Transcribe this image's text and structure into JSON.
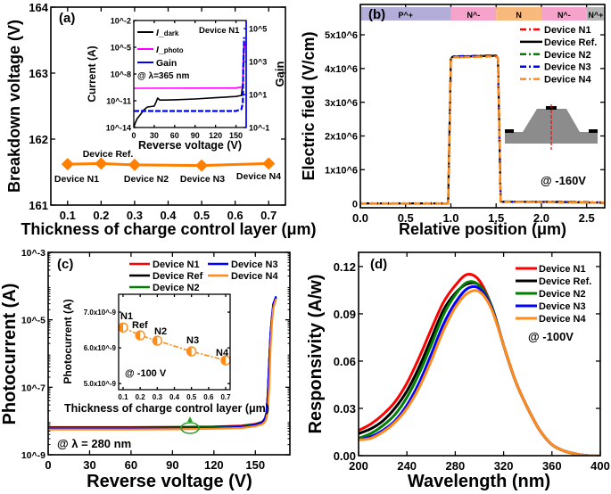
{
  "chart_data": [
    {
      "panel": "(a)",
      "type": "line",
      "xlabel": "Thickness of charge control layer (μm)",
      "ylabel": "Breakdown voltage (V)",
      "xlim": [
        0.05,
        0.75
      ],
      "ylim": [
        161,
        164
      ],
      "xticks": [
        0.1,
        0.2,
        0.3,
        0.4,
        0.5,
        0.6,
        0.7
      ],
      "xtick_labels": [
        "0.1",
        "0.2",
        "0.3",
        "0.4",
        "0.5",
        "0.6",
        "0.7"
      ],
      "yticks": [
        161,
        162,
        163,
        164
      ],
      "ytick_labels": [
        "161",
        "162",
        "163",
        "164"
      ],
      "color": "#ff7f00",
      "marker": "diamond",
      "x": [
        0.1,
        0.2,
        0.3,
        0.5,
        0.7
      ],
      "y": [
        161.62,
        161.63,
        161.61,
        161.6,
        161.63
      ],
      "point_labels": [
        "Device N1",
        "Device Ref.",
        "Device N2",
        "Device N3",
        "Device N4"
      ],
      "inset": {
        "type": "line",
        "xlabel": "Reverse voltage (V)",
        "ylabel": "Current (A)",
        "y2label": "Gain",
        "yscale": "log",
        "y2scale": "log",
        "xlim": [
          0,
          165
        ],
        "ylim": [
          1e-14,
          0.01
        ],
        "y2lim": [
          0.1,
          310000
        ],
        "xticks": [
          0,
          30,
          60,
          90,
          120,
          150
        ],
        "xtick_labels": [
          "0",
          "30",
          "60",
          "90",
          "120",
          "150"
        ],
        "yticks": [
          1e-14,
          1e-11,
          1e-08,
          1e-05,
          0.01
        ],
        "ytick_labels": [
          "10^-14",
          "10^-11",
          "10^-8",
          "10^-5",
          "10^-2"
        ],
        "y2ticks": [
          0.1,
          10,
          1000,
          100000
        ],
        "y2tick_labels": [
          "10^-1",
          "10^1",
          "10^3",
          "10^5"
        ],
        "y2color": "#0000ff",
        "annotation": "@ λ=365 nm",
        "device": "Device N1",
        "series": [
          {
            "name": "I_dark",
            "color": "#000000",
            "axis": "left",
            "x": [
              0,
              2,
              5,
              10,
              15,
              20,
              30,
              33,
              35,
              38,
              45,
              60,
              90,
              120,
              150,
              158,
              160,
              161,
              162
            ],
            "y": [
              1e-14,
              3e-14,
              1e-13,
              3e-13,
              1e-12,
              2e-12,
              2.5e-12,
              8e-12,
              2e-11,
              1.2e-11,
              1.2e-11,
              1.3e-11,
              1.6e-11,
              2.2e-11,
              3e-11,
              4e-11,
              1e-09,
              1e-06,
              2e-05
            ]
          },
          {
            "name": "I_photo",
            "color": "#ff00ff",
            "axis": "left",
            "x": [
              0,
              150,
              158,
              160,
              161,
              162,
              163,
              165
            ],
            "y": [
              2.5e-10,
              2.7e-10,
              3.5e-10,
              5e-10,
              1e-07,
              5e-06,
              2e-05,
              4e-05
            ]
          },
          {
            "name": "Gain",
            "color": "#0000ff",
            "axis": "right",
            "x": [
              0,
              150,
              158,
              160,
              161,
              162
            ],
            "y": [
              1,
              1,
              1.3,
              3,
              1000,
              30000
            ]
          }
        ]
      }
    },
    {
      "panel": "(b)",
      "type": "line",
      "xlabel": "Relative position (μm)",
      "ylabel": "Electric field (V/cm)",
      "xlim": [
        0,
        2.7
      ],
      "ylim": [
        -130000,
        5900000
      ],
      "xticks": [
        0,
        0.5,
        1.0,
        1.5,
        2.0,
        2.5
      ],
      "xtick_labels": [
        "0.0",
        "0.5",
        "1.0",
        "1.5",
        "2.0",
        "2.5"
      ],
      "yticks": [
        0,
        1000000,
        2000000,
        3000000,
        4000000,
        5000000
      ],
      "ytick_labels": [
        "0",
        "1x10^6",
        "2x10^6",
        "3x10^6",
        "4x10^6",
        "5x10^6"
      ],
      "annotation": "@ -160V",
      "regions": [
        {
          "label": "P^+",
          "from": 0,
          "to": 1.0,
          "color": "#b3aed9"
        },
        {
          "label": "N^-",
          "from": 1.0,
          "to": 1.5,
          "color": "#f6a3cb"
        },
        {
          "label": "N",
          "from": 1.5,
          "to": 2.0,
          "color": "#f8b97c"
        },
        {
          "label": "N^-",
          "from": 2.0,
          "to": 2.5,
          "color": "#f6a3cb"
        },
        {
          "label": "N^+",
          "from": 2.5,
          "to": 2.7,
          "color": "#b5b5b5"
        }
      ],
      "legend_position": "top-right",
      "series": [
        {
          "name": "Device N1",
          "color": "#ff0000",
          "style": "dash-dot",
          "x": [
            0,
            0.97,
            1.0,
            1.02,
            1.5,
            1.52,
            1.55,
            2.2,
            2.7
          ],
          "y": [
            0,
            0,
            4300000,
            4350000,
            4380000,
            4300000,
            50000,
            40000,
            20000
          ]
        },
        {
          "name": "Device Ref.",
          "color": "#000000",
          "style": "solid",
          "x": [
            0,
            0.97,
            1.0,
            1.02,
            1.5,
            1.52,
            1.55,
            2.2,
            2.7
          ],
          "y": [
            0,
            0,
            4300000,
            4350000,
            4380000,
            4300000,
            50000,
            40000,
            20000
          ]
        },
        {
          "name": "Device N2",
          "color": "#008000",
          "style": "dash-dot",
          "x": [
            0,
            0.97,
            1.0,
            1.02,
            1.5,
            1.52,
            1.55,
            2.2,
            2.7
          ],
          "y": [
            0,
            0,
            4300000,
            4340000,
            4370000,
            4300000,
            60000,
            30000,
            20000
          ]
        },
        {
          "name": "Device N3",
          "color": "#0000ff",
          "style": "dash-dot",
          "x": [
            0,
            0.97,
            1.0,
            1.02,
            1.5,
            1.52,
            1.55,
            2.2,
            2.7
          ],
          "y": [
            0,
            0,
            4300000,
            4360000,
            4390000,
            4300000,
            40000,
            50000,
            30000
          ]
        },
        {
          "name": "Device N4",
          "color": "#ff8c1a",
          "style": "dash-dot",
          "x": [
            0,
            0.97,
            1.0,
            1.02,
            1.5,
            1.52,
            1.55,
            2.2,
            2.7
          ],
          "y": [
            0,
            0,
            4300000,
            4330000,
            4360000,
            4300000,
            50000,
            30000,
            20000
          ]
        }
      ]
    },
    {
      "panel": "(c)",
      "type": "line",
      "xlabel": "Reverse voltage (V)",
      "ylabel": "Photocurrent (A)",
      "yscale": "log",
      "xlim": [
        0,
        175
      ],
      "ylim": [
        1e-09,
        0.001
      ],
      "xticks": [
        0,
        30,
        60,
        90,
        120,
        150
      ],
      "xtick_labels": [
        "0",
        "30",
        "60",
        "90",
        "120",
        "150"
      ],
      "yticks": [
        1e-09,
        1e-07,
        1e-05,
        0.001
      ],
      "ytick_labels": [
        "10^-9",
        "10^-7",
        "10^-5",
        "10^-3"
      ],
      "annotation": "@ λ = 280 nm",
      "legend_position": "top-right",
      "x": [
        0,
        30,
        60,
        90,
        120,
        140,
        150,
        155,
        157,
        158,
        159,
        160,
        161,
        162,
        163,
        165
      ],
      "series": [
        {
          "name": "Device N1",
          "color": "#ff0000",
          "y": [
            6.6e-09,
            6.6e-09,
            6.6e-09,
            6.7e-09,
            6.9e-09,
            7.3e-09,
            8.2e-09,
            9.5e-09,
            1.2e-08,
            1.8e-08,
            6e-08,
            6e-07,
            4e-06,
            1.2e-05,
            2.8e-05,
            4.5e-05
          ]
        },
        {
          "name": "Device Ref",
          "color": "#000000",
          "y": [
            6.4e-09,
            6.4e-09,
            6.4e-09,
            6.5e-09,
            6.7e-09,
            7.1e-09,
            8e-09,
            9.3e-09,
            1.2e-08,
            1.7e-08,
            5.5e-08,
            5.5e-07,
            3.8e-06,
            1.2e-05,
            2.8e-05,
            4.5e-05
          ]
        },
        {
          "name": "Device N2",
          "color": "#008000",
          "y": [
            6.2e-09,
            6.2e-09,
            6.2e-09,
            6.3e-09,
            6.5e-09,
            6.9e-09,
            7.8e-09,
            9e-09,
            1.1e-08,
            1.6e-08,
            5e-08,
            5e-07,
            3.5e-06,
            1.1e-05,
            2.7e-05,
            4.5e-05
          ]
        },
        {
          "name": "Device N3",
          "color": "#0000ff",
          "y": [
            5.9e-09,
            5.9e-09,
            5.9e-09,
            6e-09,
            6.2e-09,
            6.6e-09,
            7.6e-09,
            9e-09,
            1.2e-08,
            1.7e-08,
            6e-08,
            6e-07,
            4e-06,
            1.3e-05,
            3e-05,
            5e-05
          ]
        },
        {
          "name": "Device N4",
          "color": "#ff8c1a",
          "y": [
            5.6e-09,
            5.6e-09,
            5.6e-09,
            5.7e-09,
            5.9e-09,
            6.2e-09,
            7e-09,
            8e-09,
            9.5e-09,
            1.2e-08,
            2e-08,
            1e-07,
            1.5e-06,
            8e-06,
            2.2e-05,
            4.2e-05
          ]
        }
      ],
      "inset": {
        "type": "line",
        "xlabel": "Thickness of charge control layer (μm)",
        "ylabel": "Photocurrent (A)",
        "xlim": [
          0.074,
          0.726
        ],
        "ylim": [
          4.83e-09,
          7.5e-09
        ],
        "xticks": [
          0.1,
          0.2,
          0.3,
          0.4,
          0.5,
          0.6,
          0.7
        ],
        "xtick_labels": [
          "0.1",
          "0.2",
          "0.3",
          "0.4",
          "0.5",
          "0.6",
          "0.7"
        ],
        "yticks": [
          5e-09,
          6e-09,
          7e-09
        ],
        "ytick_labels": [
          "5.0x10^-9",
          "6.0x10^-9",
          "7.0x10^-9"
        ],
        "annotation": "@ -100 V",
        "color": "#ff8c1a",
        "x": [
          0.1,
          0.2,
          0.3,
          0.5,
          0.7
        ],
        "y": [
          6.57e-09,
          6.35e-09,
          6.2e-09,
          5.9e-09,
          5.65e-09
        ],
        "point_labels": [
          "N1",
          "Ref",
          "N2",
          "N3",
          "N4"
        ]
      }
    },
    {
      "panel": "(d)",
      "type": "line",
      "xlabel": "Wavelength (nm)",
      "ylabel": "Responsivity (A/w)",
      "xlim": [
        200,
        400
      ],
      "ylim": [
        0,
        0.129
      ],
      "xticks": [
        200,
        240,
        280,
        320,
        360,
        400
      ],
      "xtick_labels": [
        "200",
        "240",
        "280",
        "320",
        "360",
        "400"
      ],
      "yticks": [
        0,
        0.03,
        0.06,
        0.09,
        0.12
      ],
      "ytick_labels": [
        "0.00",
        "0.03",
        "0.06",
        "0.09",
        "0.12"
      ],
      "annotation": "@ -100V",
      "legend_position": "top-right",
      "x": [
        200,
        210,
        220,
        230,
        240,
        250,
        260,
        270,
        280,
        290,
        300,
        310,
        320,
        330,
        340,
        350,
        360,
        370,
        380,
        390,
        400
      ],
      "series": [
        {
          "name": "Device N1",
          "color": "#ff0000",
          "y": [
            0.016,
            0.02,
            0.026,
            0.034,
            0.046,
            0.062,
            0.08,
            0.097,
            0.108,
            0.115,
            0.111,
            0.095,
            0.07,
            0.047,
            0.03,
            0.016,
            0.007,
            0.003,
            0.001,
            0,
            0
          ]
        },
        {
          "name": "Device Ref.",
          "color": "#000000",
          "y": [
            0.014,
            0.017,
            0.022,
            0.03,
            0.041,
            0.056,
            0.074,
            0.092,
            0.103,
            0.109,
            0.108,
            0.095,
            0.07,
            0.047,
            0.03,
            0.016,
            0.007,
            0.003,
            0.001,
            0,
            0
          ]
        },
        {
          "name": "Device N2",
          "color": "#008000",
          "y": [
            0.011,
            0.014,
            0.019,
            0.026,
            0.037,
            0.052,
            0.07,
            0.089,
            0.102,
            0.11,
            0.108,
            0.095,
            0.07,
            0.047,
            0.03,
            0.016,
            0.007,
            0.003,
            0.001,
            0,
            0
          ]
        },
        {
          "name": "Device N3",
          "color": "#0000ff",
          "y": [
            0.01,
            0.012,
            0.016,
            0.022,
            0.032,
            0.046,
            0.064,
            0.083,
            0.097,
            0.106,
            0.106,
            0.094,
            0.07,
            0.047,
            0.03,
            0.016,
            0.007,
            0.003,
            0.001,
            0,
            0
          ]
        },
        {
          "name": "Device N4",
          "color": "#ff8c1a",
          "y": [
            0.01,
            0.011,
            0.015,
            0.021,
            0.03,
            0.043,
            0.06,
            0.079,
            0.094,
            0.103,
            0.104,
            0.093,
            0.07,
            0.047,
            0.03,
            0.016,
            0.007,
            0.003,
            0.001,
            0,
            0
          ]
        }
      ]
    }
  ]
}
